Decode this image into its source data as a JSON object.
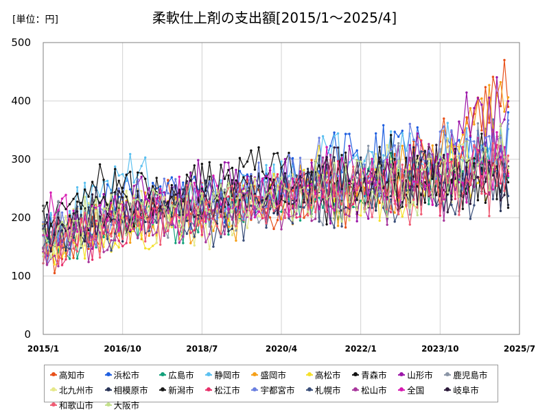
{
  "chart_data": {
    "type": "line",
    "title": "柔軟仕上剤の支出額[2015/1～2025/4]",
    "unit_label": "[単位：円]",
    "ylim": [
      0,
      500
    ],
    "yticks": [
      0,
      100,
      200,
      300,
      400,
      500
    ],
    "xlim": [
      "2015/1",
      "2025/7"
    ],
    "xticks": [
      "2015/1",
      "2016/10",
      "2018/7",
      "2020/4",
      "2022/1",
      "2023/10",
      "2025/7"
    ],
    "grid": true,
    "legend_position": "bottom",
    "series": [
      {
        "name": "高知市",
        "color": "#e8501a",
        "anchors": [
          [
            2015.0,
            140
          ],
          [
            2017.0,
            210
          ],
          [
            2019.0,
            225
          ],
          [
            2021.0,
            245
          ],
          [
            2023.0,
            260
          ],
          [
            2025.25,
            430
          ]
        ],
        "seed": 11
      },
      {
        "name": "浜松市",
        "color": "#1f5fe0",
        "anchors": [
          [
            2015.0,
            180
          ],
          [
            2017.0,
            240
          ],
          [
            2019.0,
            235
          ],
          [
            2021.0,
            270
          ],
          [
            2022.0,
            300
          ],
          [
            2024.0,
            320
          ],
          [
            2025.25,
            345
          ]
        ],
        "seed": 12
      },
      {
        "name": "広島市",
        "color": "#12a07a",
        "anchors": [
          [
            2015.0,
            150
          ],
          [
            2017.0,
            200
          ],
          [
            2019.0,
            205
          ],
          [
            2021.0,
            235
          ],
          [
            2023.0,
            255
          ],
          [
            2025.25,
            300
          ]
        ],
        "seed": 13
      },
      {
        "name": "静岡市",
        "color": "#5bc0f0",
        "anchors": [
          [
            2015.0,
            170
          ],
          [
            2016.75,
            300
          ],
          [
            2017.5,
            240
          ],
          [
            2019.0,
            230
          ],
          [
            2021.0,
            290
          ],
          [
            2023.0,
            300
          ],
          [
            2025.25,
            330
          ]
        ],
        "seed": 14
      },
      {
        "name": "盛岡市",
        "color": "#f5a019",
        "anchors": [
          [
            2015.0,
            160
          ],
          [
            2017.0,
            200
          ],
          [
            2019.0,
            200
          ],
          [
            2021.0,
            250
          ],
          [
            2023.0,
            270
          ],
          [
            2025.25,
            425
          ]
        ],
        "seed": 15
      },
      {
        "name": "高松市",
        "color": "#f5e02a",
        "anchors": [
          [
            2015.0,
            150
          ],
          [
            2017.0,
            190
          ],
          [
            2019.0,
            220
          ],
          [
            2021.0,
            260
          ],
          [
            2023.0,
            250
          ],
          [
            2025.25,
            300
          ]
        ],
        "seed": 16
      },
      {
        "name": "青森市",
        "color": "#111111",
        "anchors": [
          [
            2015.0,
            190
          ],
          [
            2016.0,
            250
          ],
          [
            2018.0,
            240
          ],
          [
            2019.6,
            300
          ],
          [
            2021.0,
            250
          ],
          [
            2023.0,
            270
          ],
          [
            2025.25,
            280
          ]
        ],
        "seed": 17
      },
      {
        "name": "山形市",
        "color": "#9b16a8",
        "anchors": [
          [
            2015.0,
            160
          ],
          [
            2017.0,
            220
          ],
          [
            2019.0,
            260
          ],
          [
            2021.0,
            250
          ],
          [
            2023.0,
            270
          ],
          [
            2025.25,
            410
          ]
        ],
        "seed": 18
      },
      {
        "name": "鹿児島市",
        "color": "#8a95a6",
        "anchors": [
          [
            2015.0,
            170
          ],
          [
            2017.0,
            210
          ],
          [
            2019.0,
            215
          ],
          [
            2021.0,
            240
          ],
          [
            2023.0,
            265
          ],
          [
            2025.25,
            300
          ]
        ],
        "seed": 19
      },
      {
        "name": "北九州市",
        "color": "#e6e88a",
        "anchors": [
          [
            2015.0,
            160
          ],
          [
            2017.0,
            205
          ],
          [
            2019.0,
            200
          ],
          [
            2021.0,
            240
          ],
          [
            2023.0,
            270
          ],
          [
            2025.25,
            310
          ]
        ],
        "seed": 20
      },
      {
        "name": "相模原市",
        "color": "#2a3558",
        "anchors": [
          [
            2015.0,
            175
          ],
          [
            2017.0,
            215
          ],
          [
            2019.0,
            220
          ],
          [
            2021.0,
            255
          ],
          [
            2023.0,
            240
          ],
          [
            2025.25,
            270
          ]
        ],
        "seed": 21
      },
      {
        "name": "新潟市",
        "color": "#1a1a1a",
        "anchors": [
          [
            2015.0,
            185
          ],
          [
            2017.0,
            235
          ],
          [
            2019.0,
            240
          ],
          [
            2021.0,
            270
          ],
          [
            2023.0,
            260
          ],
          [
            2025.25,
            285
          ]
        ],
        "seed": 22
      },
      {
        "name": "松江市",
        "color": "#e8306a",
        "anchors": [
          [
            2015.0,
            150
          ],
          [
            2017.0,
            190
          ],
          [
            2019.0,
            215
          ],
          [
            2021.0,
            245
          ],
          [
            2023.0,
            270
          ],
          [
            2025.25,
            260
          ]
        ],
        "seed": 23
      },
      {
        "name": "宇都宮市",
        "color": "#6a7fe0",
        "anchors": [
          [
            2015.0,
            165
          ],
          [
            2017.0,
            215
          ],
          [
            2019.0,
            225
          ],
          [
            2021.0,
            270
          ],
          [
            2022.5,
            300
          ],
          [
            2025.25,
            320
          ]
        ],
        "seed": 24
      },
      {
        "name": "札幌市",
        "color": "#3b4f7a",
        "anchors": [
          [
            2015.0,
            160
          ],
          [
            2017.0,
            200
          ],
          [
            2019.0,
            195
          ],
          [
            2021.0,
            230
          ],
          [
            2023.0,
            245
          ],
          [
            2025.25,
            270
          ]
        ],
        "seed": 25
      },
      {
        "name": "松山市",
        "color": "#a8379c",
        "anchors": [
          [
            2015.0,
            130
          ],
          [
            2017.0,
            195
          ],
          [
            2019.0,
            205
          ],
          [
            2021.0,
            240
          ],
          [
            2023.0,
            255
          ],
          [
            2025.25,
            290
          ]
        ],
        "seed": 26
      },
      {
        "name": "全国",
        "color": "#d619b0",
        "anchors": [
          [
            2015.0,
            190
          ],
          [
            2017.0,
            215
          ],
          [
            2019.0,
            225
          ],
          [
            2021.0,
            250
          ],
          [
            2023.0,
            265
          ],
          [
            2025.25,
            295
          ]
        ],
        "seed": 27
      },
      {
        "name": "岐阜市",
        "color": "#2b1a3a",
        "anchors": [
          [
            2015.0,
            170
          ],
          [
            2017.0,
            215
          ],
          [
            2019.0,
            230
          ],
          [
            2021.0,
            260
          ],
          [
            2023.0,
            255
          ],
          [
            2025.25,
            265
          ]
        ],
        "seed": 28
      },
      {
        "name": "和歌山市",
        "color": "#ef5b73",
        "anchors": [
          [
            2015.0,
            150
          ],
          [
            2017.0,
            200
          ],
          [
            2019.0,
            210
          ],
          [
            2021.0,
            240
          ],
          [
            2023.0,
            255
          ],
          [
            2025.25,
            280
          ]
        ],
        "seed": 29
      },
      {
        "name": "大阪市",
        "color": "#c3e08a",
        "anchors": [
          [
            2015.0,
            175
          ],
          [
            2017.0,
            215
          ],
          [
            2019.0,
            220
          ],
          [
            2021.0,
            250
          ],
          [
            2023.0,
            260
          ],
          [
            2025.25,
            300
          ]
        ],
        "seed": 30
      }
    ]
  }
}
